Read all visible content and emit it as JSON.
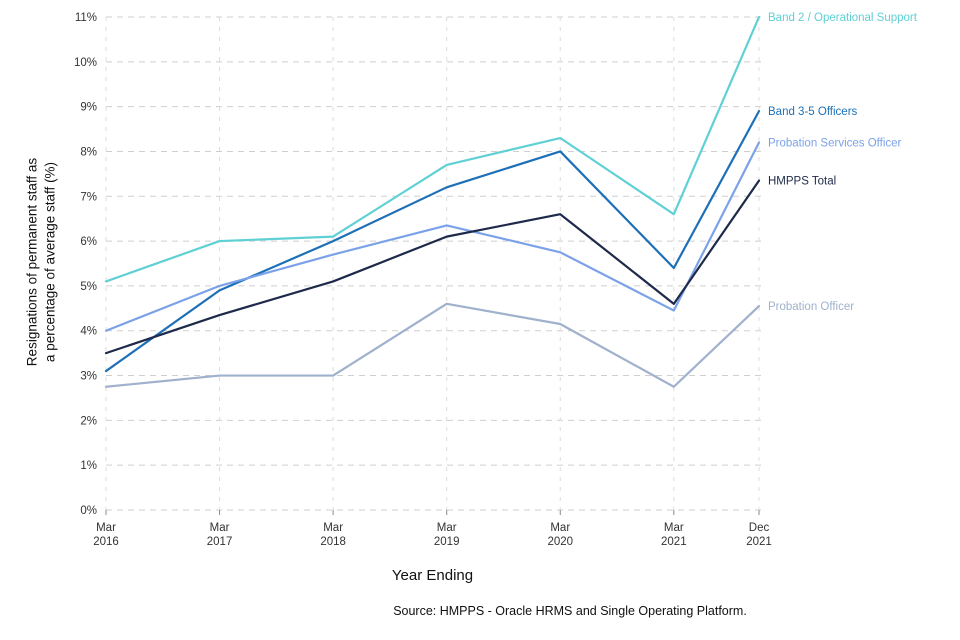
{
  "chart_data": {
    "type": "line",
    "title": "",
    "xlabel": "Year Ending",
    "ylabel": "Resignations of permanent staff as\na percentage of average staff (%)",
    "source": "Source: HMPPS - Oracle HRMS and Single Operating Platform.",
    "x_tick_labels": [
      [
        "Mar",
        "2016"
      ],
      [
        "Mar",
        "2017"
      ],
      [
        "Mar",
        "2018"
      ],
      [
        "Mar",
        "2019"
      ],
      [
        "Mar",
        "2020"
      ],
      [
        "Mar",
        "2021"
      ],
      [
        "Dec",
        "2021"
      ]
    ],
    "x_months": [
      0,
      12,
      24,
      36,
      48,
      60,
      69
    ],
    "ylim": [
      0,
      11
    ],
    "ytick_step": 1,
    "ytick_suffix": "%",
    "grid": "dashed horizontal and vertical gridlines",
    "legend_position": "right-end-labels",
    "series": [
      {
        "name": "Band 2 / Operational Support",
        "color": "#5fd0d4",
        "values": [
          5.1,
          6.0,
          6.1,
          7.7,
          8.3,
          6.6,
          11.0
        ]
      },
      {
        "name": "Band 3-5 Officers",
        "color": "#1d70b8",
        "values": [
          3.1,
          4.9,
          6.0,
          7.2,
          8.0,
          5.4,
          8.9
        ]
      },
      {
        "name": "Probation Services Officer",
        "color": "#7ba2e8",
        "values": [
          4.0,
          5.0,
          5.7,
          6.35,
          5.75,
          4.45,
          8.2
        ]
      },
      {
        "name": "HMPPS Total",
        "color": "#1e2a4a",
        "values": [
          3.5,
          4.35,
          5.1,
          6.1,
          6.6,
          4.6,
          7.35
        ]
      },
      {
        "name": "Probation Officer",
        "color": "#9fb1cc",
        "values": [
          2.75,
          3.0,
          3.0,
          4.6,
          4.15,
          2.75,
          4.55
        ]
      }
    ]
  }
}
